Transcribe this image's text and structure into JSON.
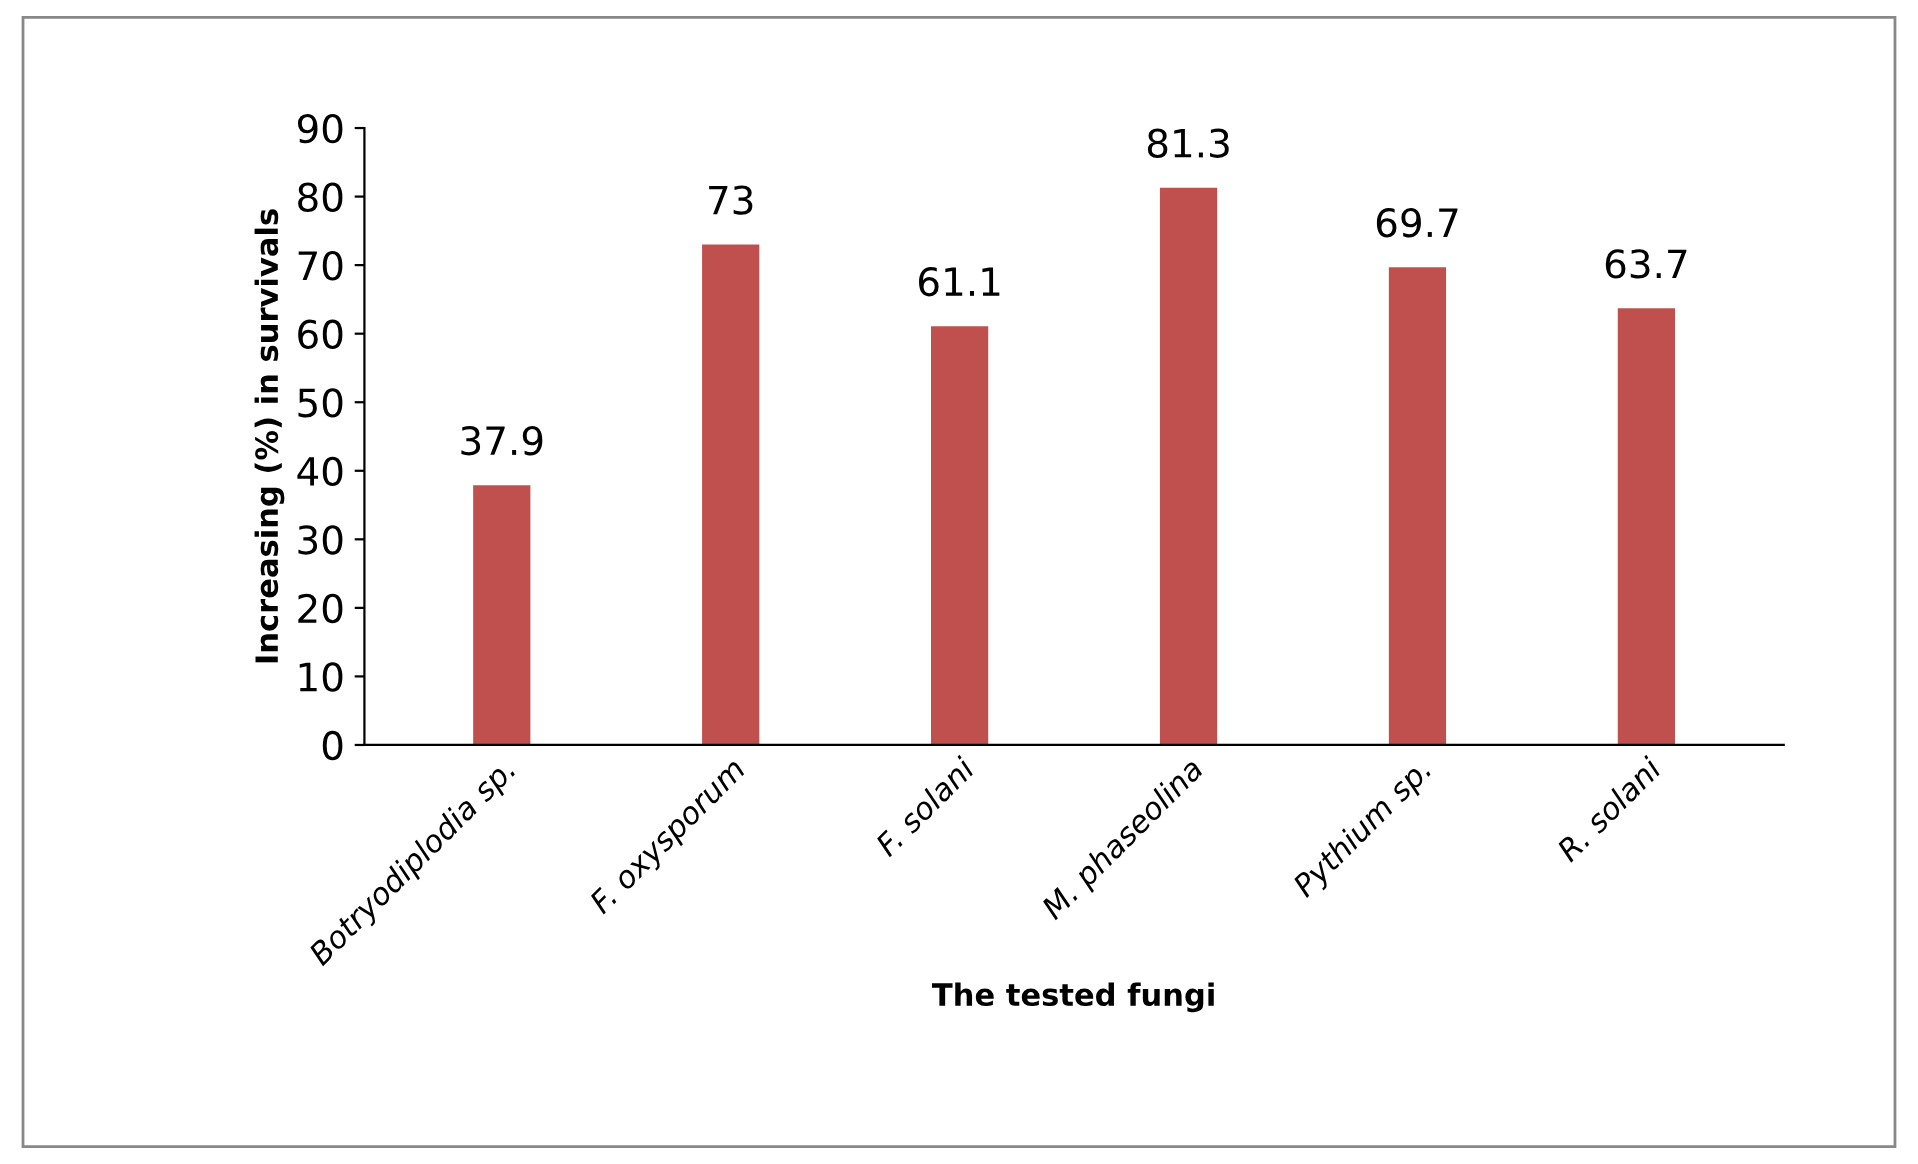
{
  "chart_data": {
    "type": "bar",
    "xlabel": "The tested fungi",
    "ylabel": "Increasing (%) in survivals",
    "categories": [
      "Botryodiplodia sp.",
      "F. oxysporum",
      "F. solani",
      "M. phaseolina",
      "Pythium sp.",
      "R. solani"
    ],
    "values": [
      37.9,
      73,
      61.1,
      81.3,
      69.7,
      63.7
    ],
    "color": "#c0504d",
    "ylim": [
      0,
      90
    ],
    "yticks": [
      0,
      10,
      20,
      30,
      40,
      50,
      60,
      70,
      80,
      90
    ],
    "grid": false,
    "data_labels": true
  }
}
